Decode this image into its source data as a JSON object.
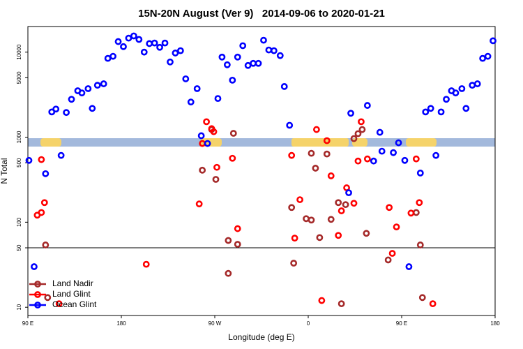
{
  "chart_data": {
    "type": "scatter",
    "title": "15N-20N August (Ver 9)   2014-09-06 to 2020-01-21",
    "x_label": "Longitude (deg E)",
    "y_label": "N Total",
    "log_y": true,
    "legend": "bottom-left",
    "reference_line": 50,
    "xlim": [
      -270,
      180
    ],
    "xticks": [
      {
        "value": -270,
        "label": "90 E"
      },
      {
        "value": -180,
        "label": "180"
      },
      {
        "value": -90,
        "label": "90 W"
      },
      0,
      {
        "value": 90,
        "label": "90 E"
      },
      {
        "value": 180,
        "label": "180"
      }
    ],
    "ylim": [
      8,
      20000
    ],
    "yticks": [
      10,
      50,
      100,
      500,
      1000,
      5000,
      10000
    ],
    "series": [
      {
        "name": "Land Nadir",
        "color": "#a52a2a",
        "x": [
          -253,
          -251,
          -102,
          -93,
          -89,
          -77,
          -72,
          -68,
          -77,
          -16,
          -14,
          -2,
          3,
          3,
          7,
          11,
          18,
          22,
          29,
          32,
          36,
          44,
          48,
          52,
          56,
          77,
          104,
          108,
          110
        ],
        "values": [
          54,
          13,
          409,
          1230,
          319,
          25,
          1110,
          55,
          61,
          149,
          33,
          110,
          646,
          106,
          432,
          66,
          634,
          108,
          170,
          11,
          161,
          962,
          1100,
          1230,
          74,
          36,
          130,
          54,
          13
        ]
      },
      {
        "name": "Land Glint",
        "color": "#ff0000",
        "x": [
          -261,
          -257,
          -257,
          -254,
          -240,
          -156,
          -105,
          -102,
          -98,
          -93,
          -91,
          -88,
          -73,
          -68,
          -16,
          -13,
          -8,
          8,
          13,
          18,
          22,
          29,
          32,
          37,
          44,
          48,
          51,
          57,
          78,
          81,
          85,
          99,
          104,
          107,
          120
        ],
        "values": [
          121,
          130,
          545,
          170,
          11,
          32,
          164,
          843,
          1520,
          1260,
          1160,
          442,
          565,
          84,
          610,
          65,
          184,
          1230,
          12,
          910,
          351,
          70,
          136,
          254,
          167,
          524,
          1520,
          555,
          149,
          43,
          88,
          128,
          555,
          170,
          11
        ]
      },
      {
        "name": "Ocean Glint",
        "color": "#0000ff",
        "x": [
          -269,
          -264,
          -253,
          -247,
          -243,
          -238,
          -233,
          -228,
          -222,
          -218,
          -212,
          -208,
          -203,
          -197,
          -193,
          -188,
          -183,
          -178,
          -173,
          -168,
          -163,
          -158,
          -153,
          -148,
          -143,
          -138,
          -133,
          -128,
          -123,
          -118,
          -113,
          -107,
          -103,
          -97,
          -87,
          -83,
          -78,
          -73,
          -68,
          -63,
          -58,
          -53,
          -48,
          -43,
          -38,
          -33,
          -27,
          -23,
          -18,
          39,
          41,
          57,
          63,
          69,
          71,
          82,
          87,
          93,
          97,
          108,
          113,
          118,
          123,
          128,
          133,
          138,
          142,
          148,
          152,
          158,
          163,
          168,
          173,
          178
        ],
        "values": [
          533,
          30,
          372,
          1980,
          2140,
          610,
          1950,
          2790,
          3510,
          3310,
          3720,
          2180,
          4080,
          4240,
          8440,
          8930,
          13300,
          11600,
          14600,
          15500,
          14100,
          10000,
          12600,
          12800,
          11400,
          12800,
          7660,
          9760,
          10400,
          4850,
          2590,
          3720,
          1040,
          843,
          2850,
          8750,
          7100,
          4680,
          8750,
          11900,
          6970,
          7380,
          7380,
          13800,
          10600,
          10400,
          9100,
          3940,
          1380,
          222,
          1910,
          2360,
          524,
          1140,
          684,
          658,
          859,
          533,
          30,
          379,
          1980,
          2180,
          610,
          1980,
          2790,
          3510,
          3310,
          3720,
          2180,
          4080,
          4240,
          8440,
          8930,
          13600
        ]
      }
    ]
  }
}
